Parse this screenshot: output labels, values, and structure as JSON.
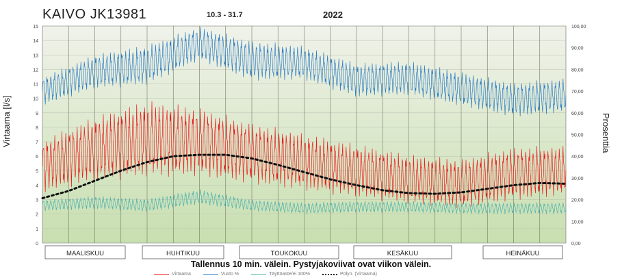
{
  "header": {
    "title": "KAIVO JK13981",
    "date_range": "10.3 - 31.7",
    "year": "2022"
  },
  "footnote": "Tallennus 10 min. välein. Pystyjakoviivat ovat viikon välein.",
  "legend": {
    "virtaama": "Virtaama",
    "vuoto": "Vuoto %",
    "tayttoaste": "Täyttöaste/ei 100%",
    "polyn": "Polyn. (Virtaama)"
  },
  "colors": {
    "virtaama": "#ee1c1c",
    "vuoto": "#2f7ec5",
    "tayttoaste": "#4fb3ad",
    "trend": "#111111",
    "bg_top": "#f0f2ea",
    "bg_bottom": "#c8dfb0"
  },
  "chart_data": {
    "type": "line",
    "title": "KAIVO JK13981",
    "ylabel": "Virtaama [l/s]",
    "y2label": "Prosenttia",
    "ylim": [
      0,
      15
    ],
    "y2lim": [
      0,
      100
    ],
    "yticks": [
      "0",
      "1",
      "2",
      "3",
      "4",
      "5",
      "6",
      "7",
      "8",
      "9",
      "10",
      "11",
      "12",
      "13",
      "14",
      "15"
    ],
    "y2ticks": [
      "0,00",
      "10,00",
      "20,00",
      "30,00",
      "40,00",
      "50,00",
      "60,00",
      "70,00",
      "80,00",
      "90,00",
      "100,00"
    ],
    "months": [
      "MAALISKUU",
      "HUHTIKUU",
      "TOUKOKUU",
      "KESÄKUU",
      "HEINÄKUU"
    ],
    "grid": true,
    "series": [
      {
        "name": "Virtaama",
        "axis": "left",
        "x": [
          0,
          0.1,
          0.2,
          0.3,
          0.4,
          0.5,
          0.6,
          0.7,
          0.8,
          0.9,
          1.0
        ],
        "mean": [
          5.3,
          6.5,
          7.2,
          7.0,
          6.2,
          5.6,
          5.0,
          4.4,
          4.1,
          4.8,
          5.0
        ],
        "amplitude": [
          1.4,
          1.7,
          2.0,
          1.8,
          1.6,
          1.5,
          1.4,
          1.3,
          1.3,
          1.4,
          1.3
        ]
      },
      {
        "name": "Vuoto %",
        "axis": "right",
        "x": [
          0,
          0.1,
          0.2,
          0.3,
          0.4,
          0.5,
          0.6,
          0.7,
          0.8,
          0.9,
          1.0
        ],
        "mean": [
          70,
          79,
          82,
          92,
          84,
          83,
          75,
          76,
          71,
          66,
          68
        ],
        "amplitude": [
          5,
          6,
          7,
          6,
          7,
          6,
          6,
          6,
          6,
          6,
          6
        ]
      },
      {
        "name": "Täyttöaste/ei 100%",
        "axis": "left",
        "x": [
          0,
          0.1,
          0.2,
          0.3,
          0.4,
          0.5,
          0.6,
          0.7,
          0.8,
          0.9,
          1.0
        ],
        "mean": [
          2.6,
          2.8,
          2.6,
          3.2,
          2.6,
          2.4,
          2.5,
          2.5,
          2.4,
          2.4,
          2.4
        ],
        "amplitude": [
          0.3,
          0.35,
          0.35,
          0.4,
          0.3,
          0.3,
          0.3,
          0.3,
          0.3,
          0.3,
          0.3
        ]
      },
      {
        "name": "Polyn. (Virtaama)",
        "axis": "left",
        "x": [
          0,
          0.05,
          0.1,
          0.15,
          0.2,
          0.25,
          0.3,
          0.35,
          0.4,
          0.45,
          0.5,
          0.55,
          0.6,
          0.65,
          0.7,
          0.75,
          0.8,
          0.85,
          0.9,
          0.95,
          1.0
        ],
        "values": [
          3.1,
          3.6,
          4.3,
          5.0,
          5.6,
          6.0,
          6.1,
          6.1,
          5.85,
          5.4,
          4.9,
          4.4,
          4.0,
          3.65,
          3.45,
          3.4,
          3.5,
          3.75,
          4.0,
          4.15,
          4.1
        ]
      }
    ]
  }
}
